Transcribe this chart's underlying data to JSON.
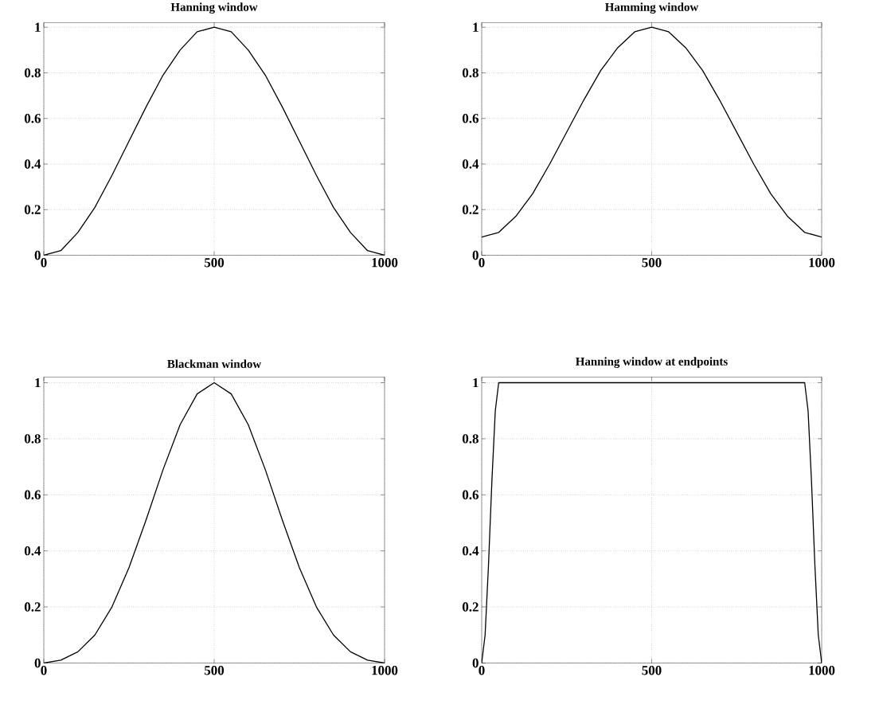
{
  "chart_data": [
    {
      "type": "line",
      "title": "Hanning window",
      "x": [
        0,
        50,
        100,
        150,
        200,
        250,
        300,
        350,
        400,
        450,
        500,
        550,
        600,
        650,
        700,
        750,
        800,
        850,
        900,
        950,
        1000
      ],
      "series": [
        {
          "color": "#000000",
          "values": [
            0,
            0.02,
            0.1,
            0.21,
            0.35,
            0.5,
            0.65,
            0.79,
            0.9,
            0.98,
            1,
            0.98,
            0.9,
            0.79,
            0.65,
            0.5,
            0.35,
            0.21,
            0.1,
            0.02,
            0
          ]
        }
      ],
      "xlim": [
        0,
        1000
      ],
      "ylim": [
        0,
        1.02
      ],
      "xticks": [
        0,
        500,
        1000
      ],
      "yticks": [
        0,
        0.2,
        0.4,
        0.6,
        0.8,
        1
      ],
      "grid": true,
      "line_style": "solid"
    },
    {
      "type": "line",
      "title": "Hamming window",
      "x": [
        0,
        50,
        100,
        150,
        200,
        250,
        300,
        350,
        400,
        450,
        500,
        550,
        600,
        650,
        700,
        750,
        800,
        850,
        900,
        950,
        1000
      ],
      "series": [
        {
          "color": "#000000",
          "values": [
            0.08,
            0.1,
            0.17,
            0.27,
            0.4,
            0.54,
            0.68,
            0.81,
            0.91,
            0.98,
            1,
            0.98,
            0.91,
            0.81,
            0.68,
            0.54,
            0.4,
            0.27,
            0.17,
            0.1,
            0.08
          ]
        }
      ],
      "xlim": [
        0,
        1000
      ],
      "ylim": [
        0,
        1.02
      ],
      "xticks": [
        0,
        500,
        1000
      ],
      "yticks": [
        0,
        0.2,
        0.4,
        0.6,
        0.8,
        1
      ],
      "grid": true,
      "line_style": "solid"
    },
    {
      "type": "line",
      "title": "Blackman window",
      "x": [
        0,
        50,
        100,
        150,
        200,
        250,
        300,
        350,
        400,
        450,
        500,
        550,
        600,
        650,
        700,
        750,
        800,
        850,
        900,
        950,
        1000
      ],
      "series": [
        {
          "color": "#000000",
          "values": [
            0,
            0.01,
            0.04,
            0.1,
            0.2,
            0.34,
            0.51,
            0.69,
            0.85,
            0.96,
            1,
            0.96,
            0.85,
            0.69,
            0.51,
            0.34,
            0.2,
            0.1,
            0.04,
            0.01,
            0
          ]
        }
      ],
      "xlim": [
        0,
        1000
      ],
      "ylim": [
        0,
        1.02
      ],
      "xticks": [
        0,
        500,
        1000
      ],
      "yticks": [
        0,
        0.2,
        0.4,
        0.6,
        0.8,
        1
      ],
      "grid": true,
      "line_style": "solid"
    },
    {
      "type": "line",
      "title": "Hanning window at endpoints",
      "x": [
        0,
        10,
        20,
        30,
        40,
        50,
        500,
        950,
        960,
        970,
        980,
        990,
        1000
      ],
      "series": [
        {
          "color": "#000000",
          "values": [
            0,
            0.1,
            0.35,
            0.65,
            0.9,
            1,
            1,
            1,
            0.9,
            0.65,
            0.35,
            0.1,
            0
          ]
        }
      ],
      "xlim": [
        0,
        1000
      ],
      "ylim": [
        0,
        1.02
      ],
      "xticks": [
        0,
        500,
        1000
      ],
      "yticks": [
        0,
        0.2,
        0.4,
        0.6,
        0.8,
        1
      ],
      "grid": true,
      "line_style": "solid"
    }
  ]
}
